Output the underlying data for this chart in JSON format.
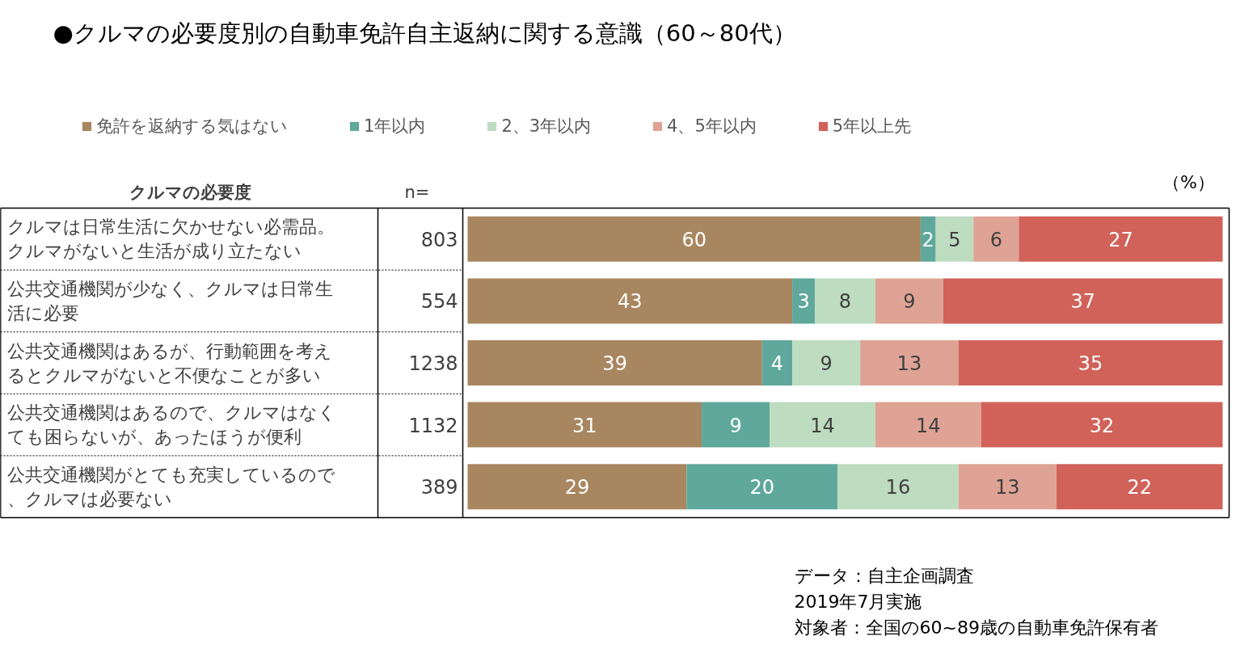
{
  "chart_data": {
    "type": "bar",
    "orientation": "horizontal",
    "stacked": true,
    "data_labels": true,
    "legend": "top",
    "title": "●クルマの必要度別の自動車免許自主返納に関する意識（60～80代）",
    "ylabel": "クルマの必要度",
    "categories": [
      "クルマは日常生活に欠かせない必需品。クルマがないと生活が成り立たない",
      "公共交通機関が少なく、クルマは日常生活に必要",
      "公共交通機関はあるが、行動範囲を考えるとクルマがないと不便なことが多い",
      "公共交通機関はあるので、クルマはなくても困らないが、あったほうが便利",
      "公共交通機関がとても充実しているので、クルマは必要ない"
    ],
    "series": [
      {
        "name": "免許を返納する気はない",
        "color": "#a8865f",
        "values": [
          60,
          43,
          39,
          31,
          29
        ]
      },
      {
        "name": "1年以内",
        "color": "#5fa89b",
        "values": [
          2,
          3,
          4,
          9,
          20
        ]
      },
      {
        "name": "2、3年以内",
        "color": "#bedcc0",
        "values": [
          5,
          8,
          9,
          14,
          16
        ]
      },
      {
        "name": "4、5年以内",
        "color": "#dea394",
        "values": [
          6,
          9,
          13,
          14,
          13
        ]
      },
      {
        "name": "5年以上先",
        "color": "#d0625a",
        "values": [
          27,
          37,
          35,
          32,
          22
        ]
      }
    ],
    "annotations": [
      "n=",
      "803",
      "554",
      "1238",
      "1132",
      "389",
      "（%）",
      "データ：自主企画調査",
      "2019年7月実施",
      "対象者：全国の60~89歳の自動車免許保有者"
    ]
  }
}
